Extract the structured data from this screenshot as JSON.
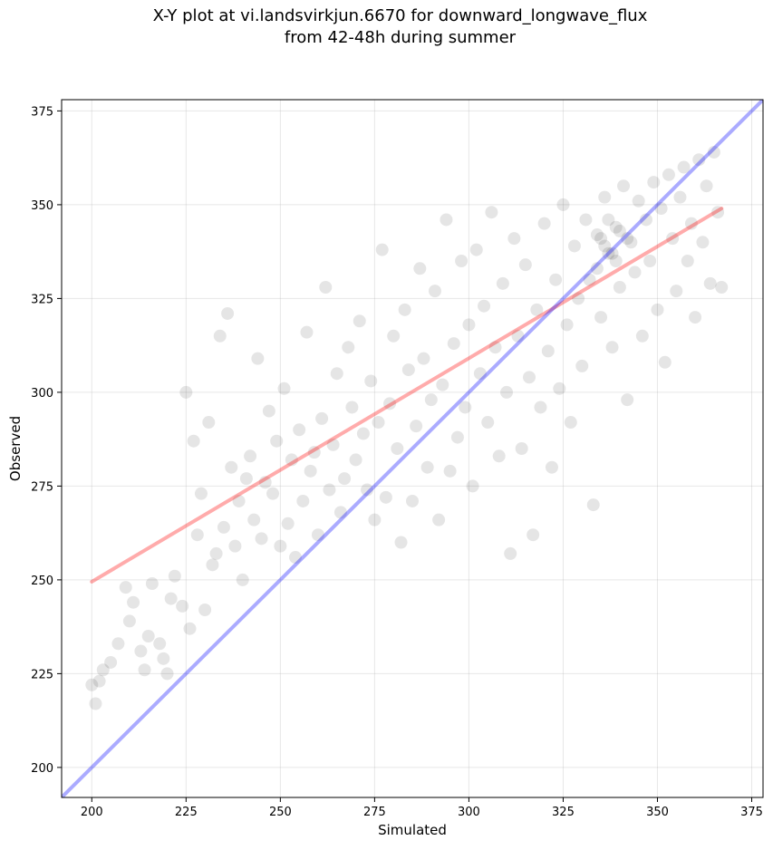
{
  "chart_data": {
    "type": "scatter",
    "title": "X-Y plot at vi.landsvirkjun.6670 for downward_longwave_flux",
    "subtitle": "from 42-48h during summer",
    "xlabel": "Simulated",
    "ylabel": "Observed",
    "xlim": [
      192,
      378
    ],
    "ylim": [
      192,
      378
    ],
    "xticks": [
      200,
      225,
      250,
      275,
      300,
      325,
      350,
      375
    ],
    "yticks": [
      200,
      225,
      250,
      275,
      300,
      325,
      350,
      375
    ],
    "grid": true,
    "point_color": "#000000",
    "point_alpha": 0.1,
    "points": [
      [
        200,
        222
      ],
      [
        201,
        217
      ],
      [
        202,
        223
      ],
      [
        203,
        226
      ],
      [
        205,
        228
      ],
      [
        207,
        233
      ],
      [
        209,
        248
      ],
      [
        210,
        239
      ],
      [
        211,
        244
      ],
      [
        213,
        231
      ],
      [
        214,
        226
      ],
      [
        215,
        235
      ],
      [
        216,
        249
      ],
      [
        218,
        233
      ],
      [
        219,
        229
      ],
      [
        220,
        225
      ],
      [
        221,
        245
      ],
      [
        222,
        251
      ],
      [
        224,
        243
      ],
      [
        225,
        300
      ],
      [
        226,
        237
      ],
      [
        227,
        287
      ],
      [
        228,
        262
      ],
      [
        229,
        273
      ],
      [
        230,
        242
      ],
      [
        231,
        292
      ],
      [
        232,
        254
      ],
      [
        233,
        257
      ],
      [
        234,
        315
      ],
      [
        235,
        264
      ],
      [
        236,
        321
      ],
      [
        237,
        280
      ],
      [
        238,
        259
      ],
      [
        239,
        271
      ],
      [
        240,
        250
      ],
      [
        241,
        277
      ],
      [
        242,
        283
      ],
      [
        243,
        266
      ],
      [
        244,
        309
      ],
      [
        245,
        261
      ],
      [
        246,
        276
      ],
      [
        247,
        295
      ],
      [
        248,
        273
      ],
      [
        249,
        287
      ],
      [
        250,
        259
      ],
      [
        251,
        301
      ],
      [
        252,
        265
      ],
      [
        253,
        282
      ],
      [
        254,
        256
      ],
      [
        255,
        290
      ],
      [
        256,
        271
      ],
      [
        257,
        316
      ],
      [
        258,
        279
      ],
      [
        259,
        284
      ],
      [
        260,
        262
      ],
      [
        261,
        293
      ],
      [
        262,
        328
      ],
      [
        263,
        274
      ],
      [
        264,
        286
      ],
      [
        265,
        305
      ],
      [
        266,
        268
      ],
      [
        267,
        277
      ],
      [
        268,
        312
      ],
      [
        269,
        296
      ],
      [
        270,
        282
      ],
      [
        271,
        319
      ],
      [
        272,
        289
      ],
      [
        273,
        274
      ],
      [
        274,
        303
      ],
      [
        275,
        266
      ],
      [
        276,
        292
      ],
      [
        277,
        338
      ],
      [
        278,
        272
      ],
      [
        279,
        297
      ],
      [
        280,
        315
      ],
      [
        281,
        285
      ],
      [
        282,
        260
      ],
      [
        283,
        322
      ],
      [
        284,
        306
      ],
      [
        285,
        271
      ],
      [
        286,
        291
      ],
      [
        287,
        333
      ],
      [
        288,
        309
      ],
      [
        289,
        280
      ],
      [
        290,
        298
      ],
      [
        291,
        327
      ],
      [
        292,
        266
      ],
      [
        293,
        302
      ],
      [
        294,
        346
      ],
      [
        295,
        279
      ],
      [
        296,
        313
      ],
      [
        297,
        288
      ],
      [
        298,
        335
      ],
      [
        299,
        296
      ],
      [
        300,
        318
      ],
      [
        301,
        275
      ],
      [
        302,
        338
      ],
      [
        303,
        305
      ],
      [
        304,
        323
      ],
      [
        305,
        292
      ],
      [
        306,
        348
      ],
      [
        307,
        312
      ],
      [
        308,
        283
      ],
      [
        309,
        329
      ],
      [
        310,
        300
      ],
      [
        311,
        257
      ],
      [
        312,
        341
      ],
      [
        313,
        315
      ],
      [
        314,
        285
      ],
      [
        315,
        334
      ],
      [
        316,
        304
      ],
      [
        317,
        262
      ],
      [
        318,
        322
      ],
      [
        319,
        296
      ],
      [
        320,
        345
      ],
      [
        321,
        311
      ],
      [
        322,
        280
      ],
      [
        323,
        330
      ],
      [
        324,
        301
      ],
      [
        325,
        350
      ],
      [
        326,
        318
      ],
      [
        327,
        292
      ],
      [
        328,
        339
      ],
      [
        329,
        325
      ],
      [
        330,
        307
      ],
      [
        331,
        346
      ],
      [
        332,
        330
      ],
      [
        333,
        270
      ],
      [
        334,
        342
      ],
      [
        335,
        320
      ],
      [
        336,
        352
      ],
      [
        337,
        337
      ],
      [
        338,
        312
      ],
      [
        339,
        344
      ],
      [
        340,
        328
      ],
      [
        341,
        355
      ],
      [
        342,
        298
      ],
      [
        343,
        340
      ],
      [
        344,
        332
      ],
      [
        345,
        351
      ],
      [
        346,
        315
      ],
      [
        347,
        346
      ],
      [
        348,
        335
      ],
      [
        349,
        356
      ],
      [
        350,
        322
      ],
      [
        351,
        349
      ],
      [
        352,
        308
      ],
      [
        353,
        358
      ],
      [
        354,
        341
      ],
      [
        355,
        327
      ],
      [
        356,
        352
      ],
      [
        357,
        360
      ],
      [
        358,
        335
      ],
      [
        359,
        345
      ],
      [
        360,
        320
      ],
      [
        361,
        362
      ],
      [
        362,
        340
      ],
      [
        363,
        355
      ],
      [
        364,
        329
      ],
      [
        365,
        364
      ],
      [
        366,
        348
      ],
      [
        367,
        328
      ],
      [
        338,
        337
      ],
      [
        336,
        339
      ],
      [
        340,
        343
      ],
      [
        334,
        333
      ],
      [
        342,
        341
      ],
      [
        337,
        346
      ],
      [
        339,
        335
      ],
      [
        335,
        341
      ]
    ],
    "series": [
      {
        "name": "",
        "type": "line",
        "color": "#ff0000",
        "x": [
          200,
          367
        ],
        "y": [
          249.5,
          349.0
        ]
      },
      {
        "name": "",
        "type": "line",
        "color": "#0000ff",
        "x": [
          192,
          378
        ],
        "y": [
          192,
          378
        ]
      }
    ]
  }
}
